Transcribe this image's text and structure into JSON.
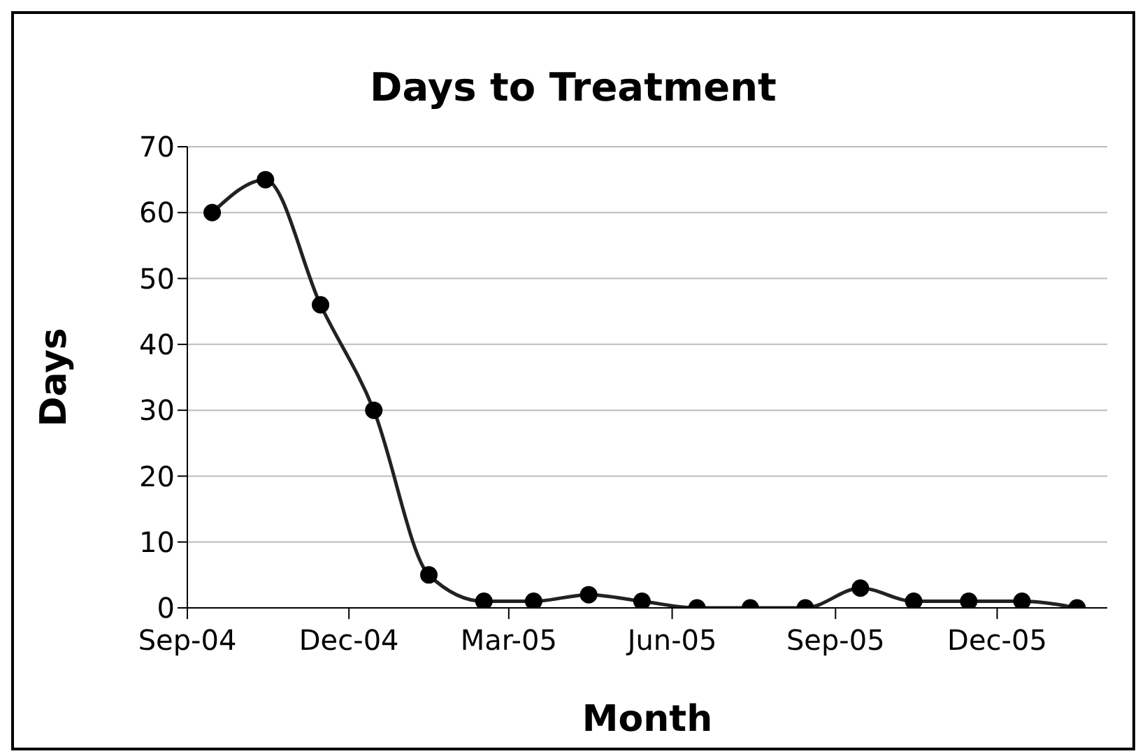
{
  "chart_data": {
    "type": "line",
    "title": "Days to Treatment",
    "xlabel": "Month",
    "ylabel": "Days",
    "x": [
      "2004-09-15",
      "2004-10-15",
      "2004-11-15",
      "2004-12-15",
      "2005-01-15",
      "2005-02-15",
      "2005-03-15",
      "2005-04-15",
      "2005-05-15",
      "2005-06-15",
      "2005-07-15",
      "2005-08-15",
      "2005-09-15",
      "2005-10-15",
      "2005-11-15",
      "2005-12-15",
      "2006-01-15"
    ],
    "series": [
      {
        "color": "#222222",
        "values": [
          60,
          65,
          46,
          30,
          5,
          1,
          1,
          2,
          1,
          0,
          0,
          0,
          3,
          1,
          1,
          1,
          0
        ]
      }
    ],
    "xlim": [
      "2004-09-01",
      "2006-02-01"
    ],
    "xticks": [
      {
        "value": "2004-09-01",
        "label": "Sep-04"
      },
      {
        "value": "2004-12-01",
        "label": "Dec-04"
      },
      {
        "value": "2005-03-01",
        "label": "Mar-05"
      },
      {
        "value": "2005-06-01",
        "label": "Jun-05"
      },
      {
        "value": "2005-09-01",
        "label": "Sep-05"
      },
      {
        "value": "2005-12-01",
        "label": "Dec-05"
      }
    ],
    "ylim": [
      0,
      70
    ],
    "yticks": [
      0,
      10,
      20,
      30,
      40,
      50,
      60,
      70
    ],
    "grid": "y",
    "legend": false,
    "marker": "circle",
    "line_style": "solid"
  }
}
